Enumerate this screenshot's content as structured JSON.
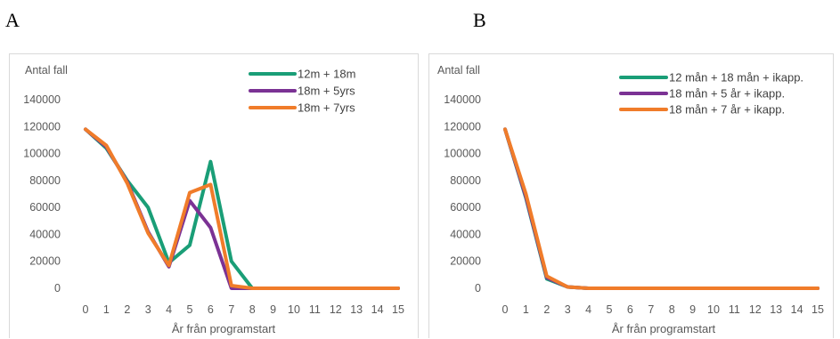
{
  "panels": [
    {
      "letter": "A",
      "chart_data": {
        "type": "line",
        "ylabel": "Antal fall",
        "xlabel": "År från programstart",
        "x": [
          0,
          1,
          2,
          3,
          4,
          5,
          6,
          7,
          8,
          9,
          10,
          11,
          12,
          13,
          14,
          15
        ],
        "ylim": [
          0,
          140000
        ],
        "yticks": [
          0,
          20000,
          40000,
          60000,
          80000,
          100000,
          120000,
          140000
        ],
        "legend_position": "top-right",
        "grid": false,
        "series": [
          {
            "name": "12m + 18m",
            "color": "#1a9e77",
            "values": [
              118000,
              104000,
              80000,
              60000,
              19000,
              32000,
              94000,
              20000,
              0,
              0,
              0,
              0,
              0,
              0,
              0,
              0
            ]
          },
          {
            "name": "18m + 5yrs",
            "color": "#7b3294",
            "values": [
              118000,
              105000,
              79000,
              42000,
              16000,
              65000,
              45000,
              0,
              0,
              0,
              0,
              0,
              0,
              0,
              0,
              0
            ]
          },
          {
            "name": "18m + 7yrs",
            "color": "#f07c2a",
            "values": [
              118000,
              106000,
              78000,
              41000,
              17000,
              71000,
              77000,
              2000,
              0,
              0,
              0,
              0,
              0,
              0,
              0,
              0
            ]
          }
        ]
      }
    },
    {
      "letter": "B",
      "chart_data": {
        "type": "line",
        "ylabel": "Antal fall",
        "xlabel": "År från programstart",
        "x": [
          0,
          1,
          2,
          3,
          4,
          5,
          6,
          7,
          8,
          9,
          10,
          11,
          12,
          13,
          14,
          15
        ],
        "ylim": [
          0,
          140000
        ],
        "yticks": [
          0,
          20000,
          40000,
          60000,
          80000,
          100000,
          120000,
          140000
        ],
        "legend_position": "top-right",
        "grid": false,
        "series": [
          {
            "name": "12 mån + 18 mån + ikapp.",
            "color": "#1a9e77",
            "values": [
              118000,
              67000,
              7000,
              1000,
              0,
              0,
              0,
              0,
              0,
              0,
              0,
              0,
              0,
              0,
              0,
              0
            ]
          },
          {
            "name": "18 mån + 5 år + ikapp.",
            "color": "#7b3294",
            "values": [
              118000,
              68000,
              8000,
              1000,
              0,
              0,
              0,
              0,
              0,
              0,
              0,
              0,
              0,
              0,
              0,
              0
            ]
          },
          {
            "name": "18 mån + 7 år + ikapp.",
            "color": "#f07c2a",
            "values": [
              118000,
              70000,
              9000,
              1000,
              0,
              0,
              0,
              0,
              0,
              0,
              0,
              0,
              0,
              0,
              0,
              0
            ]
          }
        ]
      }
    }
  ]
}
